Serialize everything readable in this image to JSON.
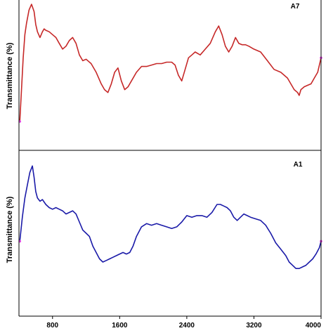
{
  "chart_data": [
    {
      "type": "line",
      "title": "A7",
      "xlabel": "",
      "ylabel": "Transmittance (%)",
      "xlim": [
        400,
        4000
      ],
      "ylim": [
        0,
        100
      ],
      "grid": false,
      "color": "#c62828",
      "series": [
        {
          "x": [
            410,
            430,
            450,
            470,
            490,
            520,
            550,
            580,
            600,
            620,
            650,
            680,
            700,
            720,
            760,
            800,
            840,
            880,
            920,
            960,
            1000,
            1040,
            1080,
            1120,
            1160,
            1200,
            1260,
            1320,
            1380,
            1420,
            1460,
            1500,
            1540,
            1580,
            1620,
            1660,
            1700,
            1740,
            1800,
            1860,
            1920,
            1980,
            2040,
            2100,
            2160,
            2220,
            2260,
            2300,
            2340,
            2380,
            2420,
            2460,
            2500,
            2560,
            2620,
            2680,
            2740,
            2780,
            2820,
            2860,
            2900,
            2940,
            2980,
            3020,
            3060,
            3100,
            3140,
            3200,
            3280,
            3360,
            3440,
            3520,
            3600,
            3640,
            3680,
            3720,
            3740,
            3760,
            3800,
            3840,
            3880,
            3920,
            3960,
            4000
          ],
          "values": [
            18,
            40,
            62,
            78,
            86,
            95,
            99,
            94,
            85,
            80,
            76,
            80,
            82,
            81,
            80,
            78,
            76,
            72,
            68,
            70,
            74,
            76,
            72,
            64,
            60,
            61,
            58,
            52,
            44,
            40,
            38,
            44,
            52,
            55,
            46,
            40,
            42,
            46,
            52,
            56,
            56,
            57,
            58,
            58,
            59,
            59,
            57,
            50,
            46,
            54,
            62,
            64,
            66,
            64,
            68,
            72,
            80,
            84,
            78,
            70,
            66,
            70,
            76,
            72,
            71,
            71,
            70,
            68,
            66,
            60,
            54,
            52,
            48,
            44,
            40,
            38,
            36,
            40,
            42,
            43,
            44,
            48,
            52,
            62
          ]
        }
      ]
    },
    {
      "type": "line",
      "title": "A1",
      "xlabel": "",
      "ylabel": "Transmittance (%)",
      "xlim": [
        400,
        4000
      ],
      "ylim": [
        0,
        100
      ],
      "grid": false,
      "color": "#1a1aa8",
      "x_ticks": [
        "800",
        "1600",
        "2400",
        "3200",
        "4000"
      ],
      "series": [
        {
          "x": [
            410,
            440,
            470,
            500,
            530,
            560,
            580,
            600,
            620,
            650,
            680,
            720,
            760,
            800,
            840,
            880,
            920,
            960,
            1000,
            1040,
            1080,
            1120,
            1160,
            1200,
            1240,
            1280,
            1320,
            1360,
            1400,
            1440,
            1480,
            1520,
            1560,
            1600,
            1640,
            1680,
            1720,
            1760,
            1800,
            1860,
            1920,
            1980,
            2040,
            2100,
            2160,
            2220,
            2280,
            2340,
            2400,
            2460,
            2520,
            2580,
            2640,
            2700,
            2760,
            2800,
            2840,
            2880,
            2920,
            2960,
            3000,
            3040,
            3080,
            3120,
            3160,
            3220,
            3280,
            3340,
            3400,
            3460,
            3520,
            3580,
            3620,
            3660,
            3700,
            3740,
            3780,
            3820,
            3860,
            3900,
            3940,
            3980,
            4000
          ],
          "values": [
            45,
            60,
            72,
            80,
            88,
            92,
            85,
            76,
            72,
            70,
            71,
            68,
            66,
            65,
            66,
            65,
            64,
            62,
            63,
            64,
            62,
            57,
            52,
            50,
            48,
            42,
            38,
            34,
            32,
            33,
            34,
            35,
            36,
            37,
            38,
            37,
            38,
            42,
            48,
            54,
            56,
            55,
            56,
            55,
            54,
            53,
            54,
            57,
            61,
            60,
            61,
            61,
            60,
            63,
            68,
            68,
            67,
            66,
            64,
            60,
            58,
            60,
            62,
            61,
            60,
            59,
            58,
            55,
            50,
            44,
            40,
            36,
            32,
            30,
            28,
            28,
            29,
            30,
            32,
            34,
            37,
            41,
            45
          ]
        }
      ]
    }
  ]
}
